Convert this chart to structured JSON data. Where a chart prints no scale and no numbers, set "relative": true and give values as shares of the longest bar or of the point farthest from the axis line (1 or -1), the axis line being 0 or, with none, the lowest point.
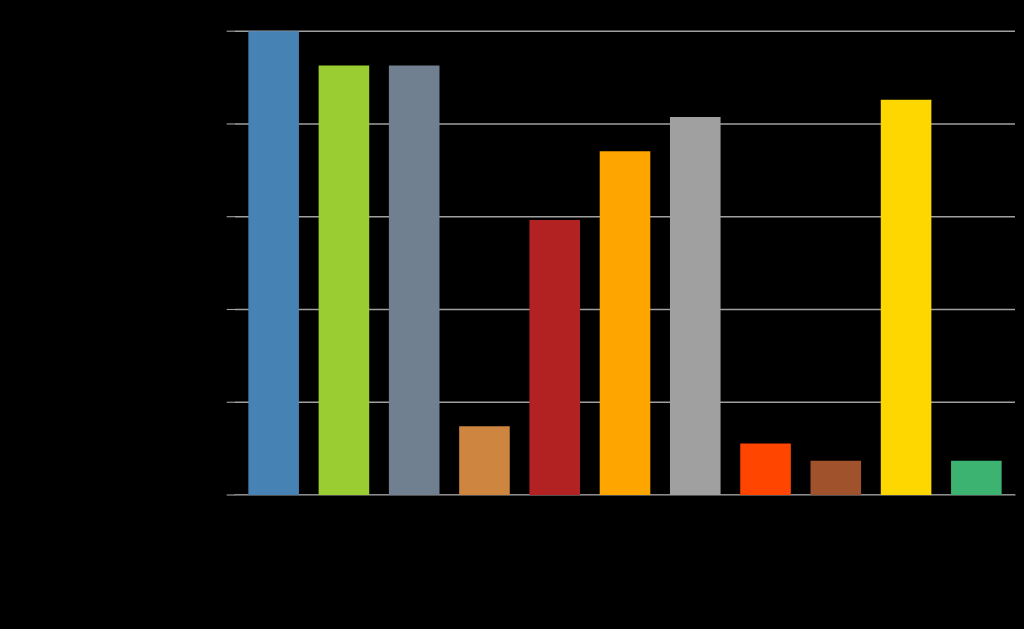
{
  "chart_data": {
    "type": "bar",
    "relative": true,
    "grid": "y",
    "legend": false,
    "categories": [
      null,
      null,
      null,
      null,
      null,
      null,
      null,
      null,
      null,
      null,
      null
    ],
    "values": [
      1,
      0.926,
      0.926,
      0.148,
      0.593,
      0.741,
      0.815,
      0.111,
      0.074,
      0.852,
      0.074
    ],
    "colors": [
      "#4682b4",
      "#9acd32",
      "#708090",
      "#cd853f",
      "#b22222",
      "#ffa500",
      "#a0a0a0",
      "#ff4500",
      "#a0522d",
      "#ffd700",
      "#3cb371"
    ]
  }
}
